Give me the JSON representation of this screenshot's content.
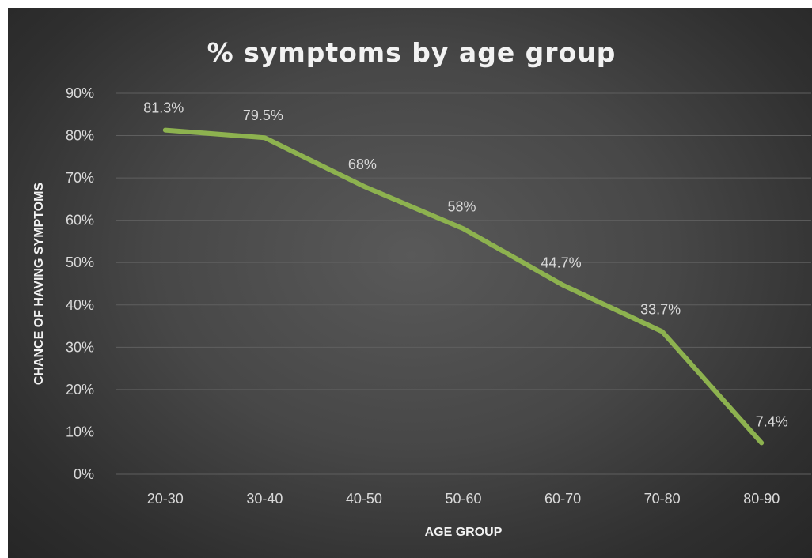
{
  "chart_data": {
    "type": "line",
    "title": "% symptoms by age group",
    "xlabel": "AGE GROUP",
    "ylabel": "CHANCE OF HAVING SYMPTOMS",
    "categories": [
      "20-30",
      "30-40",
      "40-50",
      "50-60",
      "60-70",
      "70-80",
      "80-90"
    ],
    "series": [
      {
        "values": [
          81.3,
          79.5,
          68,
          58,
          44.7,
          33.7,
          7.4
        ],
        "data_labels": [
          "81.3%",
          "79.5%",
          "68%",
          "58%",
          "44.7%",
          "33.7%",
          "7.4%"
        ]
      }
    ],
    "ylim": [
      0,
      90
    ],
    "yticks": [
      0,
      10,
      20,
      30,
      40,
      50,
      60,
      70,
      80,
      90
    ],
    "ytick_labels": [
      "0%",
      "10%",
      "20%",
      "30%",
      "40%",
      "50%",
      "60%",
      "70%",
      "80%",
      "90%"
    ],
    "grid": true,
    "legend": "none",
    "colors": {
      "line": "#8db24f",
      "background": "#404040",
      "grid": "#5f5f5f",
      "text": "#d9d9d9"
    }
  }
}
